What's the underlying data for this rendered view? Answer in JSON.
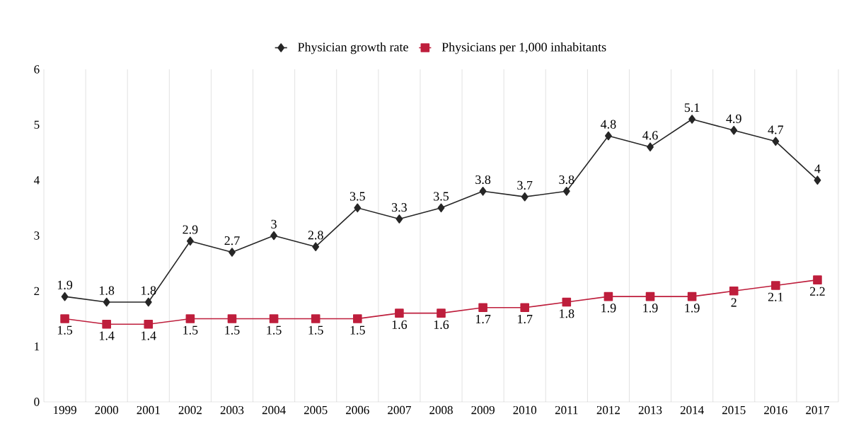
{
  "chart_data": {
    "type": "line",
    "categories": [
      "1999",
      "2000",
      "2001",
      "2002",
      "2003",
      "2004",
      "2005",
      "2006",
      "2007",
      "2008",
      "2009",
      "2010",
      "2011",
      "2012",
      "2013",
      "2014",
      "2015",
      "2016",
      "2017"
    ],
    "series": [
      {
        "name": "Physician growth rate",
        "color": "#262626",
        "marker": "diamond",
        "values": [
          1.9,
          1.8,
          1.8,
          2.9,
          2.7,
          3,
          2.8,
          3.5,
          3.3,
          3.5,
          3.8,
          3.7,
          3.8,
          4.8,
          4.6,
          5.1,
          4.9,
          4.7,
          4
        ]
      },
      {
        "name": "Physicians per 1,000 inhabitants",
        "color": "#be1e3c",
        "marker": "square",
        "values": [
          1.5,
          1.4,
          1.4,
          1.5,
          1.5,
          1.5,
          1.5,
          1.5,
          1.6,
          1.6,
          1.7,
          1.7,
          1.8,
          1.9,
          1.9,
          1.9,
          2,
          2.1,
          2.2
        ]
      }
    ],
    "ylim": [
      0,
      6
    ],
    "yticks": [
      0,
      1,
      2,
      3,
      4,
      5,
      6
    ],
    "grid": "x",
    "legend": "top",
    "data_labels": true
  }
}
